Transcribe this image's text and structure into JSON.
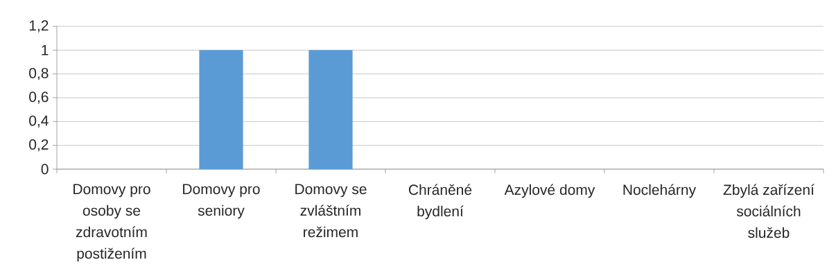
{
  "chart_data": {
    "type": "bar",
    "categories": [
      "Domovy pro osoby se zdravotním postižením",
      "Domovy pro seniory",
      "Domovy se zvláštním režimem",
      "Chráněné bydlení",
      "Azylové domy",
      "Noclehárny",
      "Zbylá zařízení sociálních služeb"
    ],
    "values": [
      0,
      1,
      1,
      0,
      0,
      0,
      0
    ],
    "color": "#5b9bd5",
    "ylim": [
      0,
      1.2
    ],
    "yticks": [
      0,
      {
        "value": 0.2,
        "label": "0,2"
      },
      {
        "value": 0.4,
        "label": "0,4"
      },
      {
        "value": 0.6,
        "label": "0,6"
      },
      {
        "value": 0.8,
        "label": "0,8"
      },
      1,
      {
        "value": 1.2,
        "label": "1,2"
      }
    ],
    "grid": "y"
  }
}
